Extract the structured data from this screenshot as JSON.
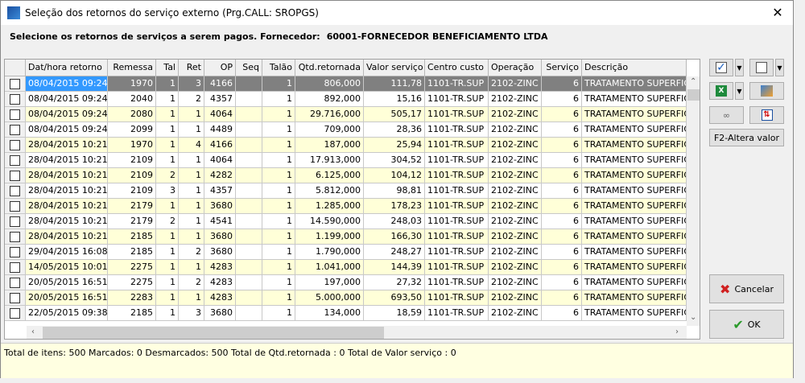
{
  "window": {
    "title": "Seleção dos retornos do serviço externo (Prg.CALL: SROPGS)",
    "close": "✕"
  },
  "prompt": {
    "label": "Selecione os retornos de serviços a serem pagos. Fornecedor:",
    "supplier": "60001-FORNECEDOR BENEFICIAMENTO LTDA"
  },
  "table": {
    "columns": [
      "Dat/hora retorno",
      "Remessa",
      "Tal",
      "Ret",
      "OP",
      "Seq",
      "Talão",
      "Qtd.retornada",
      "Valor serviço",
      "Centro custo",
      "Operação",
      "Serviço",
      "Descrição"
    ],
    "rows": [
      [
        "08/04/2015 09:24",
        "1970",
        "1",
        "3",
        "4166",
        "",
        "1",
        "806,000",
        "111,78",
        "1101-TR.SUP",
        "2102-ZINC",
        "6",
        "TRATAMENTO SUPERFICIA"
      ],
      [
        "08/04/2015 09:24",
        "2040",
        "1",
        "2",
        "4357",
        "",
        "1",
        "892,000",
        "15,16",
        "1101-TR.SUP",
        "2102-ZINC",
        "6",
        "TRATAMENTO SUPERFICIA"
      ],
      [
        "08/04/2015 09:24",
        "2080",
        "1",
        "1",
        "4064",
        "",
        "1",
        "29.716,000",
        "505,17",
        "1101-TR.SUP",
        "2102-ZINC",
        "6",
        "TRATAMENTO SUPERFICIA"
      ],
      [
        "08/04/2015 09:24",
        "2099",
        "1",
        "1",
        "4489",
        "",
        "1",
        "709,000",
        "28,36",
        "1101-TR.SUP",
        "2102-ZINC",
        "6",
        "TRATAMENTO SUPERFICIA"
      ],
      [
        "28/04/2015 10:21",
        "1970",
        "1",
        "4",
        "4166",
        "",
        "1",
        "187,000",
        "25,94",
        "1101-TR.SUP",
        "2102-ZINC",
        "6",
        "TRATAMENTO SUPERFICIA"
      ],
      [
        "28/04/2015 10:21",
        "2109",
        "1",
        "1",
        "4064",
        "",
        "1",
        "17.913,000",
        "304,52",
        "1101-TR.SUP",
        "2102-ZINC",
        "6",
        "TRATAMENTO SUPERFICIA"
      ],
      [
        "28/04/2015 10:21",
        "2109",
        "2",
        "1",
        "4282",
        "",
        "1",
        "6.125,000",
        "104,12",
        "1101-TR.SUP",
        "2102-ZINC",
        "6",
        "TRATAMENTO SUPERFICIA"
      ],
      [
        "28/04/2015 10:21",
        "2109",
        "3",
        "1",
        "4357",
        "",
        "1",
        "5.812,000",
        "98,81",
        "1101-TR.SUP",
        "2102-ZINC",
        "6",
        "TRATAMENTO SUPERFICIA"
      ],
      [
        "28/04/2015 10:21",
        "2179",
        "1",
        "1",
        "3680",
        "",
        "1",
        "1.285,000",
        "178,23",
        "1101-TR.SUP",
        "2102-ZINC",
        "6",
        "TRATAMENTO SUPERFICIA"
      ],
      [
        "28/04/2015 10:21",
        "2179",
        "2",
        "1",
        "4541",
        "",
        "1",
        "14.590,000",
        "248,03",
        "1101-TR.SUP",
        "2102-ZINC",
        "6",
        "TRATAMENTO SUPERFICIA"
      ],
      [
        "28/04/2015 10:21",
        "2185",
        "1",
        "1",
        "3680",
        "",
        "1",
        "1.199,000",
        "166,30",
        "1101-TR.SUP",
        "2102-ZINC",
        "6",
        "TRATAMENTO SUPERFICIA"
      ],
      [
        "29/04/2015 16:08",
        "2185",
        "1",
        "2",
        "3680",
        "",
        "1",
        "1.790,000",
        "248,27",
        "1101-TR.SUP",
        "2102-ZINC",
        "6",
        "TRATAMENTO SUPERFICIA"
      ],
      [
        "14/05/2015 10:01",
        "2275",
        "1",
        "1",
        "4283",
        "",
        "1",
        "1.041,000",
        "144,39",
        "1101-TR.SUP",
        "2102-ZINC",
        "6",
        "TRATAMENTO SUPERFICIA"
      ],
      [
        "20/05/2015 16:51",
        "2275",
        "1",
        "2",
        "4283",
        "",
        "1",
        "197,000",
        "27,32",
        "1101-TR.SUP",
        "2102-ZINC",
        "6",
        "TRATAMENTO SUPERFICIA"
      ],
      [
        "20/05/2015 16:51",
        "2283",
        "1",
        "1",
        "4283",
        "",
        "1",
        "5.000,000",
        "693,50",
        "1101-TR.SUP",
        "2102-ZINC",
        "6",
        "TRATAMENTO SUPERFICIA"
      ],
      [
        "22/05/2015 09:38",
        "2185",
        "1",
        "3",
        "3680",
        "",
        "1",
        "134,000",
        "18,59",
        "1101-TR.SUP",
        "2102-ZINC",
        "6",
        "TRATAMENTO SUPERFICIA"
      ]
    ]
  },
  "toolbar": {
    "f2_label": "F2-Altera valor",
    "cancel_label": "Cancelar",
    "ok_label": "OK"
  },
  "status": {
    "text": "Total de itens: 500 Marcados: 0 Desmarcados: 500 Total de Qtd.retornada : 0 Total de Valor serviço : 0"
  },
  "colors": {
    "selected_row": "#808080",
    "selected_cell": "#3399ff",
    "alt_row": "#ffffd8",
    "status_bg": "#ffffe1"
  }
}
